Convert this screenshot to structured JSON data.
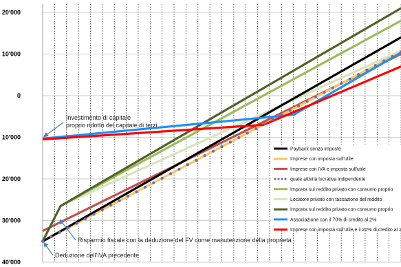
{
  "chart_data": {
    "type": "line",
    "title": "",
    "xlabel": "",
    "ylabel": "",
    "ylim": [
      -40000,
      20000
    ],
    "y_ticks": [
      {
        "value": 20000,
        "label": "20'000"
      },
      {
        "value": 10000,
        "label": "10'000"
      },
      {
        "value": 0,
        "label": "0"
      },
      {
        "value": -10000,
        "label": "10'000"
      },
      {
        "value": -20000,
        "label": "20'000"
      },
      {
        "value": -30000,
        "label": "30'000"
      },
      {
        "value": -40000,
        "label": "40'000"
      }
    ],
    "xlim": [
      0,
      30
    ],
    "grid_vertical_every": 1,
    "grid_horizontal": true,
    "legend_position": "right",
    "series": [
      {
        "name": "Payback senza imposte",
        "color": "#000000",
        "style": "solid",
        "x": [
          0,
          30
        ],
        "y": [
          -35000,
          14000
        ]
      },
      {
        "name": "Imprese con imposta sull'utile",
        "color": "#f6c85f",
        "style": "solid",
        "x": [
          0,
          30
        ],
        "y": [
          -35000,
          10500
        ]
      },
      {
        "name": "Imprese con IVA e imposta sull'utile",
        "color": "#c0504d",
        "style": "solid",
        "x": [
          0,
          30
        ],
        "y": [
          -32500,
          10000
        ]
      },
      {
        "name": "quale attività lucrativa indipendente",
        "color": "#7b68ae",
        "style": "dotted",
        "x": [
          0,
          30
        ],
        "y": [
          -35000,
          10500
        ]
      },
      {
        "name": "Imposta sul reddito privato con consumo proprio",
        "color": "#9bbb59",
        "style": "solid",
        "x": [
          1.5,
          30
        ],
        "y": [
          -26500,
          18000
        ]
      },
      {
        "name": "Locatore privato con tassazione del reddito",
        "color": "#d7e4bd",
        "style": "solid",
        "x": [
          1.5,
          30
        ],
        "y": [
          -26500,
          10800
        ]
      },
      {
        "name": "Imposta sul reddito privato con consumo proprio",
        "color": "#4f6228",
        "style": "solid",
        "x": [
          0,
          1.5,
          30
        ],
        "y": [
          -35000,
          -26500,
          21000
        ]
      },
      {
        "name": "Associazione con il 70% di credito al 2%",
        "color": "#1e90ff",
        "style": "solid",
        "x": [
          0,
          21,
          30
        ],
        "y": [
          -10300,
          -4600,
          10300
        ]
      },
      {
        "name": "Imprese con imposta sull'utile e il 20% di credito al 2%",
        "color": "#ff0000",
        "style": "solid",
        "x": [
          0,
          18.5,
          30
        ],
        "y": [
          -10500,
          -7000,
          7000
        ]
      }
    ],
    "annotations": [
      {
        "text": "Investimento di capitale",
        "target_x": 0,
        "target_y": -10500
      },
      {
        "text": "proprio ridotto del capitale di terzi",
        "target_x": 0,
        "target_y": -10500
      },
      {
        "text": "Risparmio fiscale con la deduzione del FV come manutenzione della proprietà",
        "target_x": 1,
        "target_y": -28500
      },
      {
        "text": "Deduzione dell'IVA precedente",
        "target_x": 0,
        "target_y": -35000
      }
    ]
  }
}
